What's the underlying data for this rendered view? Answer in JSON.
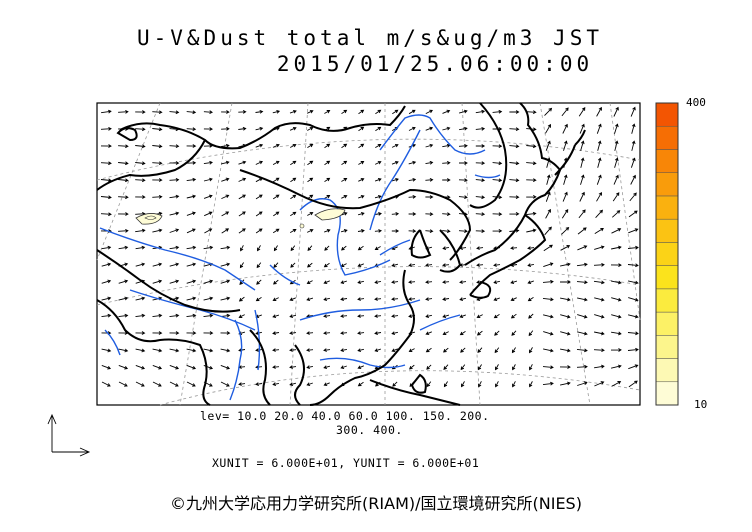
{
  "header": {
    "title": "U-V&Dust total m/s&ug/m3 JST",
    "datetime": "2015/01/25.06:00:00"
  },
  "legend": {
    "lev_line1": "lev= 10.0 20.0 40.0 60.0 100. 150. 200.",
    "lev_line2": "300. 400.",
    "units": "XUNIT = 6.000E+01, YUNIT = 6.000E+01"
  },
  "colorbar": {
    "max_label": "400",
    "min_label": "10",
    "colors": [
      "#fefcd6",
      "#fdf9b4",
      "#fcf58c",
      "#fcf166",
      "#fbeb3e",
      "#fbe31c",
      "#fbd317",
      "#fbc313",
      "#fab10f",
      "#f99c0b",
      "#f88607",
      "#f66e04",
      "#f35502"
    ]
  },
  "footer": {
    "copyright": "©九州大学応用力学研究所(RIAM)/国立環境研究所(NIES)"
  }
}
